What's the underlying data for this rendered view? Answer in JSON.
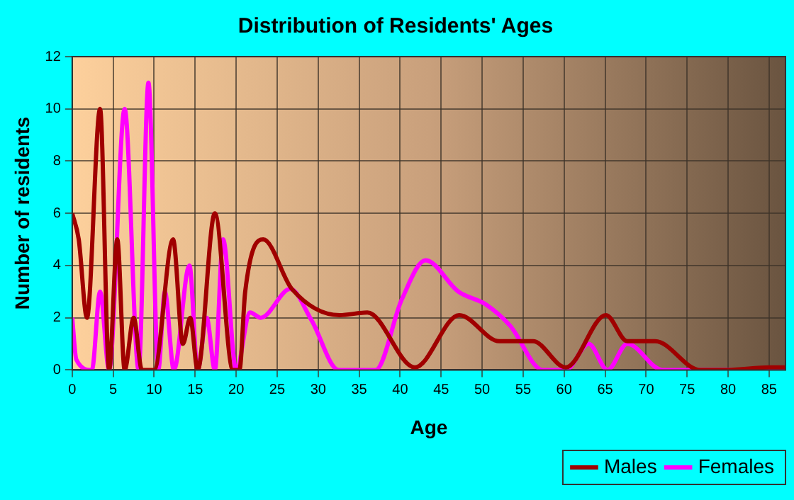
{
  "chart_data": {
    "type": "line",
    "title": "Distribution of Residents' Ages",
    "xlabel": "Age",
    "ylabel": "Number of residents",
    "xlim": [
      0,
      87
    ],
    "xticks": [
      0,
      5,
      10,
      15,
      20,
      25,
      30,
      35,
      40,
      45,
      50,
      55,
      60,
      65,
      70,
      75,
      80,
      85
    ],
    "ylim": [
      0,
      12
    ],
    "yticks": [
      0,
      2,
      4,
      6,
      8,
      10,
      12
    ],
    "grid": true,
    "legend": "bottom right",
    "series": [
      {
        "name": "Males",
        "color": "#a00000",
        "x": [
          0,
          0.8,
          1.8,
          3.4,
          4.5,
          5.5,
          6.4,
          7.5,
          8.5,
          10,
          12.3,
          13.5,
          14.4,
          15.3,
          17.4,
          19.6,
          20.4,
          21.1,
          23.3,
          26.8,
          32.6,
          36,
          41.8,
          47.2,
          52.1,
          56.2,
          60.2,
          65.1,
          67.7,
          71.1,
          76.6,
          80,
          85,
          87
        ],
        "values": [
          6,
          5,
          2,
          10,
          0,
          5,
          0,
          2,
          0,
          0,
          5,
          1,
          2,
          0,
          6,
          0,
          0,
          3,
          5,
          3.1,
          2.1,
          2.2,
          0.1,
          2.1,
          1.1,
          1.1,
          0.1,
          2.1,
          1.1,
          1.1,
          0,
          0,
          0.1,
          0.1
        ]
      },
      {
        "name": "Females",
        "color": "#ff00ff",
        "x": [
          0,
          0.5,
          2.4,
          3.4,
          4.5,
          6.4,
          8.1,
          9.3,
          10.5,
          11.3,
          12.4,
          14.3,
          15.3,
          16.4,
          17.4,
          18.4,
          20,
          21.7,
          23,
          26.6,
          29.2,
          32.5,
          37,
          40.2,
          43.1,
          47.1,
          50.5,
          53.4,
          57.4,
          60.2,
          63,
          65.3,
          67.7,
          72,
          80,
          87
        ],
        "values": [
          2,
          0.4,
          0,
          3,
          0,
          10,
          0,
          11,
          0,
          3,
          0,
          4,
          0,
          2,
          0,
          5,
          0,
          2.2,
          2,
          3.1,
          1.9,
          0,
          0,
          2.7,
          4.2,
          3,
          2.5,
          1.7,
          0,
          0,
          1,
          0,
          1,
          0,
          0,
          0
        ]
      }
    ]
  }
}
